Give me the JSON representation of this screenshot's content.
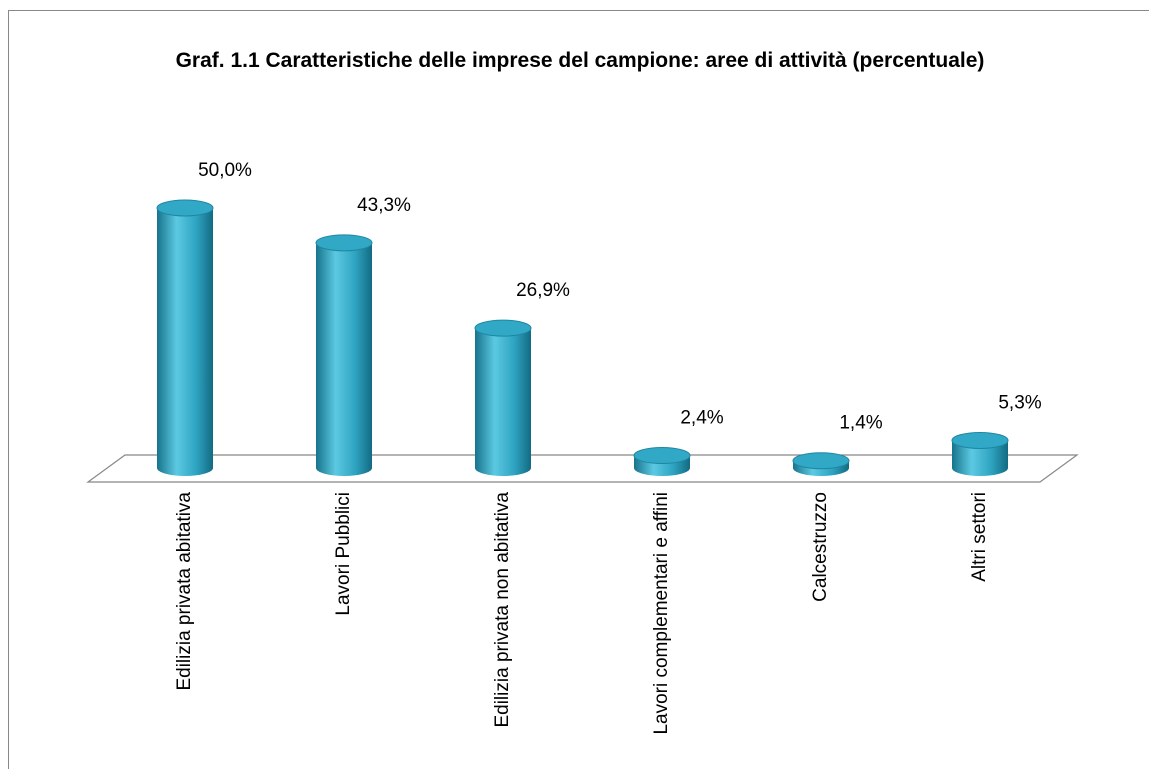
{
  "chart_data": {
    "type": "bar3d",
    "title": "Graf. 1.1 Caratteristiche delle imprese del campione: aree di attività (percentuale)",
    "categories": [
      "Edilizia privata abitativa",
      "Lavori Pubblici",
      "Edilizia privata non abitativa",
      "Lavori complementari e affini",
      "Calcestruzzo",
      "Altri settori"
    ],
    "values": [
      50.0,
      43.3,
      26.9,
      2.4,
      1.4,
      5.3
    ],
    "value_labels": [
      "50,0%",
      "43,3%",
      "26,9%",
      "2,4%",
      "1,4%",
      "5,3%"
    ],
    "color": "#31a9c6"
  }
}
